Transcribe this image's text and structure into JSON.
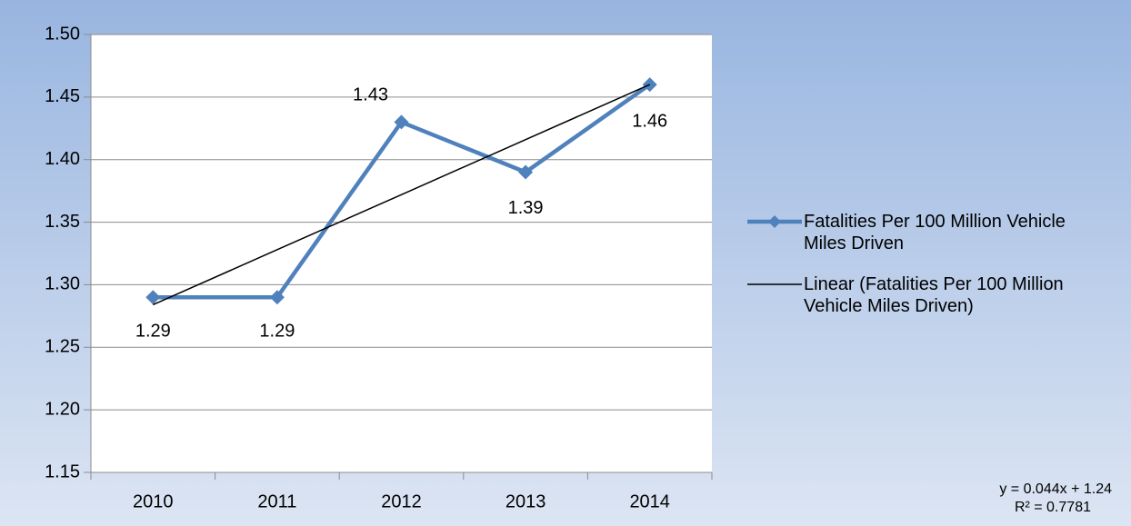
{
  "chart_data": {
    "type": "line",
    "categories": [
      "2010",
      "2011",
      "2012",
      "2013",
      "2014"
    ],
    "series": [
      {
        "name": "Fatalities Per 100 Million Vehicle Miles Driven",
        "color": "#4f81bd",
        "values": [
          1.29,
          1.29,
          1.43,
          1.39,
          1.46
        ]
      },
      {
        "name": "Linear (Fatalities Per 100 Million Vehicle Miles Driven)",
        "color": "#000000",
        "values": [
          1.284,
          1.328,
          1.372,
          1.416,
          1.46
        ]
      }
    ],
    "ylim": [
      1.15,
      1.5
    ],
    "yticks": [
      1.15,
      {
        "value": 1.2,
        "label": "1.20"
      },
      1.25,
      {
        "value": 1.3,
        "label": "1.30"
      },
      1.35,
      {
        "value": 1.4,
        "label": "1.40"
      },
      1.45,
      {
        "value": 1.5,
        "label": "1.50"
      }
    ],
    "grid": true,
    "annotations": [
      "y = 0.044x + 1.24",
      "R² = 0.7781"
    ]
  }
}
